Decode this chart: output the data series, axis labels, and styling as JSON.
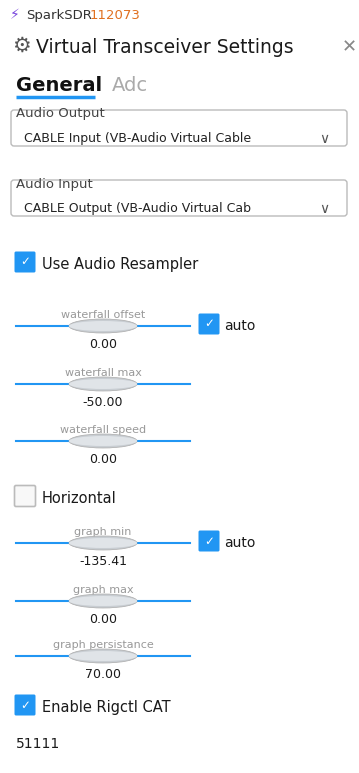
{
  "bg_color": "#ffffff",
  "app_name": "SparkSDR",
  "app_number": "112073",
  "app_name_color": "#333333",
  "app_number_color": "#e07020",
  "lightning_color": "#7744dd",
  "dialog_title": "Virtual Transceiver Settings",
  "tab_active": "General",
  "tab_inactive": "Adc",
  "tab_active_color": "#111111",
  "tab_inactive_color": "#aaaaaa",
  "tab_underline_color": "#2196F3",
  "label_color": "#444444",
  "audio_output_label": "Audio Output",
  "audio_output_value": "CABLE Input (VB-Audio Virtual Cable",
  "audio_input_label": "Audio Input",
  "audio_input_value": "CABLE Output (VB-Audio Virtual Cab",
  "dropdown_border_color": "#bbbbbb",
  "dropdown_text_color": "#222222",
  "checkbox_blue_color": "#2196F3",
  "checkbox_unchecked_border": "#bbbbbb",
  "check_label1": "Use Audio Resampler",
  "slider_label_color": "#999999",
  "slider_track_color": "#2196F3",
  "horizontal_label": "Horizontal",
  "enable_rigctl_label": "Enable Rigctl CAT",
  "port_value": "51111",
  "x_button_color": "#888888",
  "gear_color": "#555555",
  "waterfall_sliders": [
    {
      "label": "waterfall offset",
      "value": "0.00",
      "has_auto": true
    },
    {
      "label": "waterfall max",
      "value": "-50.00",
      "has_auto": false
    },
    {
      "label": "waterfall speed",
      "value": "0.00",
      "has_auto": false
    }
  ],
  "graph_sliders": [
    {
      "label": "graph min",
      "value": "-135.41",
      "has_auto": true
    },
    {
      "label": "graph max",
      "value": "0.00",
      "has_auto": false
    },
    {
      "label": "graph persistance",
      "value": "70.00",
      "has_auto": false
    }
  ]
}
